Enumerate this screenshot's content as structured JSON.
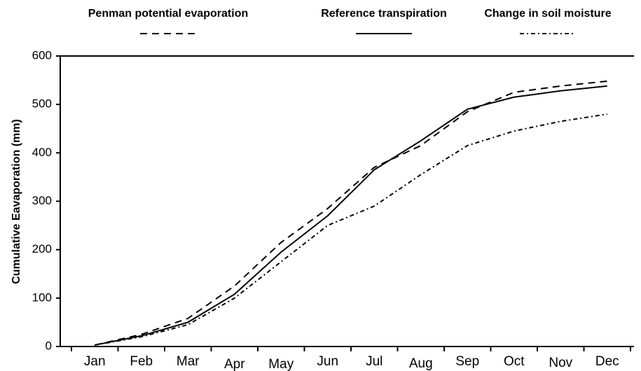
{
  "chart_data": {
    "type": "line",
    "y_label": "Cumulative Eavaporation (mm)",
    "categories": [
      "Jan",
      "Feb",
      "Mar",
      "Apr",
      "May",
      "Jun",
      "Jul",
      "Aug",
      "Sep",
      "Oct",
      "Nov",
      "Dec"
    ],
    "series": [
      {
        "name": "Penman potential evaporation",
        "color": "#000000",
        "dash": "10,7",
        "values": [
          3,
          25,
          58,
          125,
          215,
          285,
          370,
          415,
          485,
          525,
          538,
          548
        ]
      },
      {
        "name": "Reference transpiration",
        "color": "#000000",
        "dash": "none",
        "values": [
          3,
          22,
          50,
          108,
          195,
          270,
          365,
          425,
          490,
          515,
          528,
          538
        ]
      },
      {
        "name": "Change in soil moisture",
        "color": "#000000",
        "dash": "6,4,2,4",
        "values": [
          3,
          20,
          45,
          100,
          175,
          250,
          290,
          355,
          415,
          445,
          465,
          480
        ]
      }
    ],
    "ylim": [
      0,
      600
    ],
    "yticks": [
      0,
      100,
      200,
      300,
      400,
      500,
      600
    ],
    "grid": false
  }
}
